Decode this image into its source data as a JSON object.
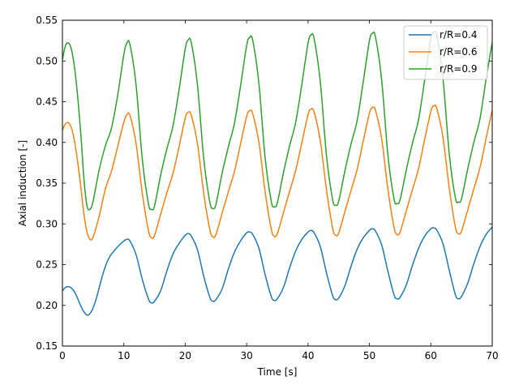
{
  "chart_data": {
    "type": "line",
    "title": "",
    "xlabel": "Time [s]",
    "ylabel": "Axial induction [-]",
    "xlim": [
      0,
      70
    ],
    "ylim": [
      0.15,
      0.55
    ],
    "xticks": [
      0,
      10,
      20,
      30,
      40,
      50,
      60,
      70
    ],
    "yticks": [
      0.15,
      0.2,
      0.25,
      0.3,
      0.35,
      0.4,
      0.45,
      0.5,
      0.55
    ],
    "xtick_labels": [
      "0",
      "10",
      "20",
      "30",
      "40",
      "50",
      "60",
      "70"
    ],
    "ytick_labels": [
      "0.15",
      "0.20",
      "0.25",
      "0.30",
      "0.35",
      "0.40",
      "0.45",
      "0.50",
      "0.55"
    ],
    "grid": false,
    "legend_position": "top-right",
    "series": [
      {
        "name": "r/R=0.4",
        "color": "#1f77b4",
        "x": [
          0,
          0.5,
          1,
          1.5,
          2,
          2.5,
          3,
          3.5,
          4,
          4.5,
          5,
          5.5,
          6,
          6.5,
          7,
          7.5,
          8,
          9,
          10,
          10.5,
          11,
          12,
          13,
          14,
          14.5,
          15,
          16,
          17,
          18,
          19,
          20,
          20.5,
          21,
          22,
          23,
          24,
          24.5,
          25,
          26,
          27,
          28,
          29,
          30,
          30.5,
          31,
          32,
          33,
          34,
          34.5,
          35,
          36,
          37,
          38,
          39,
          40,
          40.5,
          41,
          42,
          43,
          44,
          44.5,
          45,
          46,
          47,
          48,
          49,
          50,
          50.5,
          51,
          52,
          53,
          54,
          54.5,
          55,
          56,
          57,
          58,
          59,
          60,
          60.5,
          61,
          62,
          63,
          64,
          64.5,
          65,
          66,
          67,
          68,
          69,
          70
        ],
        "y": [
          0.218,
          0.222,
          0.223,
          0.221,
          0.216,
          0.208,
          0.199,
          0.192,
          0.188,
          0.19,
          0.197,
          0.208,
          0.222,
          0.236,
          0.248,
          0.257,
          0.263,
          0.272,
          0.279,
          0.281,
          0.279,
          0.262,
          0.232,
          0.208,
          0.203,
          0.205,
          0.218,
          0.242,
          0.263,
          0.276,
          0.286,
          0.288,
          0.285,
          0.268,
          0.236,
          0.21,
          0.205,
          0.207,
          0.22,
          0.244,
          0.265,
          0.279,
          0.289,
          0.29,
          0.287,
          0.27,
          0.238,
          0.211,
          0.206,
          0.208,
          0.222,
          0.246,
          0.267,
          0.281,
          0.29,
          0.292,
          0.289,
          0.272,
          0.24,
          0.212,
          0.207,
          0.209,
          0.224,
          0.248,
          0.269,
          0.283,
          0.292,
          0.294,
          0.291,
          0.274,
          0.242,
          0.213,
          0.208,
          0.21,
          0.225,
          0.249,
          0.27,
          0.285,
          0.294,
          0.295,
          0.292,
          0.275,
          0.243,
          0.213,
          0.208,
          0.211,
          0.227,
          0.251,
          0.272,
          0.287,
          0.296
        ]
      },
      {
        "name": "r/R=0.6",
        "color": "#ff7f0e",
        "x": [
          0,
          0.5,
          1,
          1.5,
          2,
          2.5,
          3,
          3.5,
          4,
          4.5,
          5,
          6,
          7,
          8,
          9,
          10,
          10.5,
          11,
          12,
          13,
          14,
          14.5,
          15,
          16,
          17,
          18,
          19,
          20,
          20.5,
          21,
          22,
          23,
          24,
          24.5,
          25,
          26,
          27,
          28,
          29,
          30,
          30.5,
          31,
          32,
          33,
          34,
          34.5,
          35,
          36,
          37,
          38,
          39,
          40,
          40.5,
          41,
          42,
          43,
          44,
          44.5,
          45,
          46,
          47,
          48,
          49,
          50,
          50.5,
          51,
          52,
          53,
          54,
          54.5,
          55,
          56,
          57,
          58,
          59,
          60,
          60.5,
          61,
          62,
          63,
          64,
          64.5,
          65,
          66,
          67,
          68,
          69,
          70
        ],
        "y": [
          0.415,
          0.423,
          0.424,
          0.417,
          0.4,
          0.375,
          0.345,
          0.312,
          0.29,
          0.281,
          0.284,
          0.31,
          0.343,
          0.365,
          0.395,
          0.425,
          0.434,
          0.433,
          0.398,
          0.338,
          0.292,
          0.283,
          0.286,
          0.312,
          0.338,
          0.362,
          0.395,
          0.43,
          0.437,
          0.433,
          0.398,
          0.338,
          0.293,
          0.284,
          0.287,
          0.313,
          0.339,
          0.364,
          0.398,
          0.432,
          0.439,
          0.435,
          0.4,
          0.34,
          0.294,
          0.285,
          0.288,
          0.314,
          0.34,
          0.366,
          0.4,
          0.434,
          0.441,
          0.437,
          0.402,
          0.342,
          0.295,
          0.286,
          0.289,
          0.315,
          0.341,
          0.367,
          0.402,
          0.436,
          0.443,
          0.439,
          0.404,
          0.343,
          0.296,
          0.287,
          0.29,
          0.316,
          0.342,
          0.368,
          0.404,
          0.438,
          0.445,
          0.441,
          0.405,
          0.344,
          0.296,
          0.288,
          0.291,
          0.317,
          0.343,
          0.369,
          0.405,
          0.44
        ]
      },
      {
        "name": "r/R=0.9",
        "color": "#2ca02c",
        "x": [
          0,
          0.5,
          1,
          1.5,
          2,
          2.5,
          3,
          3.5,
          4,
          4.5,
          5,
          6,
          7,
          8,
          9,
          10,
          10.5,
          11,
          12,
          13,
          14,
          14.5,
          15,
          16,
          17,
          18,
          19,
          20,
          20.5,
          21,
          22,
          23,
          24,
          24.5,
          25,
          26,
          27,
          28,
          29,
          30,
          30.5,
          31,
          32,
          33,
          34,
          34.5,
          35,
          36,
          37,
          38,
          39,
          40,
          40.5,
          41,
          42,
          43,
          44,
          44.5,
          45,
          46,
          47,
          48,
          49,
          50,
          50.5,
          51,
          52,
          53,
          54,
          54.5,
          55,
          56,
          57,
          58,
          59,
          60,
          60.5,
          61,
          62,
          63,
          64,
          64.5,
          65,
          66,
          67,
          68,
          69,
          70
        ],
        "y": [
          0.502,
          0.519,
          0.522,
          0.513,
          0.49,
          0.455,
          0.41,
          0.355,
          0.322,
          0.318,
          0.328,
          0.367,
          0.396,
          0.418,
          0.458,
          0.508,
          0.522,
          0.52,
          0.47,
          0.38,
          0.325,
          0.318,
          0.322,
          0.36,
          0.392,
          0.42,
          0.465,
          0.515,
          0.526,
          0.522,
          0.47,
          0.381,
          0.327,
          0.319,
          0.324,
          0.362,
          0.394,
          0.423,
          0.469,
          0.519,
          0.529,
          0.525,
          0.472,
          0.382,
          0.328,
          0.321,
          0.326,
          0.363,
          0.396,
          0.425,
          0.472,
          0.522,
          0.532,
          0.527,
          0.474,
          0.384,
          0.33,
          0.323,
          0.328,
          0.365,
          0.398,
          0.427,
          0.475,
          0.525,
          0.534,
          0.529,
          0.476,
          0.385,
          0.331,
          0.325,
          0.33,
          0.366,
          0.399,
          0.428,
          0.477,
          0.527,
          0.535,
          0.53,
          0.477,
          0.386,
          0.332,
          0.327,
          0.331,
          0.367,
          0.4,
          0.429,
          0.478,
          0.523
        ]
      }
    ]
  }
}
